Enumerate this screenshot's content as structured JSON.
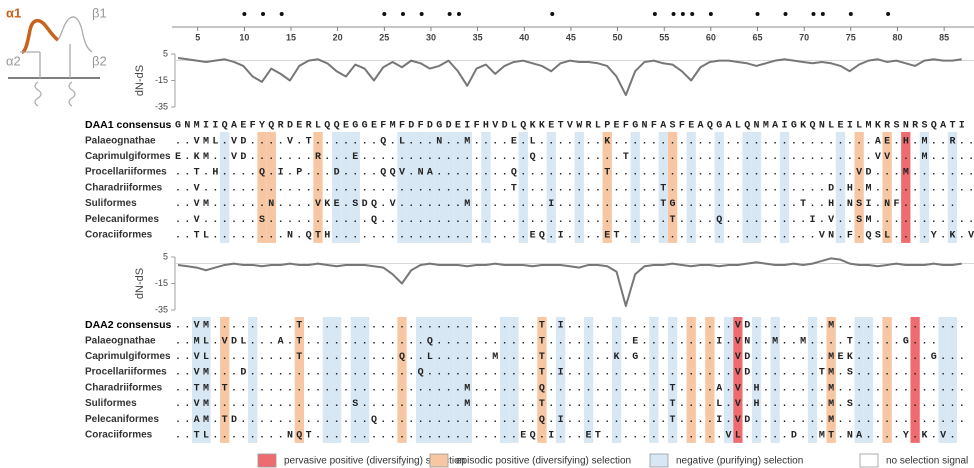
{
  "diagram_labels": [
    "α1",
    "β1",
    "α2",
    "β2"
  ],
  "ruler": {
    "ticks": [
      5,
      10,
      15,
      20,
      25,
      30,
      35,
      40,
      45,
      50,
      55,
      60,
      65,
      70,
      75,
      80,
      85
    ],
    "selected_sites": [
      10,
      12,
      14,
      25,
      27,
      29,
      32,
      33,
      43,
      54,
      56,
      57,
      58,
      60,
      65,
      68,
      71,
      72,
      75,
      79
    ]
  },
  "blocks": [
    {
      "dnds": {
        "type": "line",
        "ylabel": "dN-dS",
        "ylim": [
          -35,
          5
        ],
        "yticks": [
          5,
          -15,
          -35
        ],
        "color": "#777777",
        "values": [
          2,
          1,
          0,
          -1,
          0,
          1,
          -1,
          -4,
          -12,
          -16,
          -6,
          -10,
          -15,
          -4,
          0,
          1,
          -2,
          -8,
          -12,
          -3,
          -6,
          -15,
          -5,
          -1,
          -5,
          0,
          -2,
          -6,
          -4,
          0,
          -8,
          -19,
          -6,
          -3,
          -10,
          -4,
          -1,
          0,
          -2,
          -4,
          -8,
          -2,
          0,
          -1,
          -1,
          -2,
          -4,
          -12,
          -26,
          -8,
          -1,
          0,
          -2,
          -3,
          -8,
          -15,
          -5,
          -1,
          0,
          0,
          -1,
          -2,
          -4,
          -2,
          0,
          1,
          0,
          -1,
          -2,
          -1,
          -2,
          -4,
          -8,
          -3,
          0,
          1,
          -1,
          0,
          -2,
          -4,
          0,
          1,
          0,
          0,
          1
        ]
      },
      "consensus": {
        "name": "DAA1 consensus",
        "seq": "GNMIIQAEFYQRDERLQQEGGEFMFDFDGDEIFHVDLQKKETVWRLPEFGNFASFEAQGALQNMAIGKQNLEILMKRSNRSQATI"
      },
      "rows": [
        {
          "name": "Palaeognathae",
          "seq": "..VML.VD....V.T.......Q.L...N..M....E.L.......K............................AE.H.M..R..C.GI.."
        },
        {
          "name": "Caprimulgiformes",
          "seq": "E.KM..VD.......R...E..................Q.........T..........................VV...M.......G..."
        },
        {
          "name": "Procellariiformes",
          "seq": "..T.H....Q.I.P...D....QQV.NA........Q.........T..........................VD...M..........."
        },
        {
          "name": "Charadriiformes",
          "seq": "..V.................................T...............T.................D.H.M..............."
        },
        {
          "name": "Suliformes",
          "seq": "..VM......N....VKE.SDQ.V.......M........I...........TG.............T..H.NSI.NF......"
        },
        {
          "name": "Pelecaniformes",
          "seq": "..V......S...........Q...............................T....Q.........I.V..SM..........."
        },
        {
          "name": "Coraciiformes",
          "seq": "..TL........N.QTH.....................EQ.I....ET.....................VN.F.QSL....Y.K.V."
        }
      ],
      "negative": [
        6,
        18,
        19,
        20,
        25,
        26,
        27,
        28,
        29,
        30,
        31,
        32,
        34,
        38,
        41,
        44,
        50,
        53,
        56,
        59,
        62,
        63,
        66,
        72,
        81,
        84
      ],
      "episodic": [
        10,
        11,
        16,
        47,
        54,
        74,
        77
      ],
      "pervasive": [
        79
      ]
    },
    {
      "dnds": {
        "type": "line",
        "ylabel": "dN-dS",
        "ylim": [
          -35,
          5
        ],
        "yticks": [
          5,
          -15,
          -35
        ],
        "color": "#777777",
        "values": [
          -1,
          -2,
          -3,
          -5,
          -3,
          -1,
          0,
          -1,
          -1,
          -2,
          -1,
          -1,
          0,
          -1,
          -1,
          0,
          -1,
          -2,
          -1,
          -1,
          -1,
          -2,
          -3,
          -8,
          -15,
          -5,
          -1,
          0,
          -1,
          -1,
          -1,
          -2,
          -1,
          -1,
          0,
          -1,
          -1,
          -1,
          -2,
          -1,
          -1,
          -1,
          -2,
          -3,
          -1,
          -1,
          -2,
          -6,
          -32,
          -8,
          -2,
          -1,
          -1,
          0,
          -1,
          -2,
          -1,
          -1,
          -2,
          -1,
          -1,
          0,
          1,
          0,
          -1,
          -1,
          0,
          -1,
          0,
          2,
          4,
          3,
          0,
          -1,
          -1,
          -2,
          -1,
          0,
          -1,
          -1,
          -1,
          0,
          -1,
          -1,
          0
        ]
      },
      "consensus": {
        "name": "DAA2 consensus",
        "seq": "..VM.........T.........................T.I..................VD........M.............."
      },
      "rows": [
        {
          "name": "Palaeognathae",
          "seq": "..ML.VDL...A.T.............Q...........T.........E........I.VN..M..M....T.....G..."
        },
        {
          "name": "Caprimulgiformes",
          "seq": "..VL.........T..........Q..L......M....T.......K.G..........VD........MEK........G..."
        },
        {
          "name": "Procellariiformes",
          "seq": "..VM...D..................Q............T.I..................VD.......TM.S............"
        },
        {
          "name": "Charadriiformes",
          "seq": "..TM.T.........................M.......Q.............T....A.V.H.......M.............."
        },
        {
          "name": "Suliformes",
          "seq": "..VM...............S...........M.......T.............T....L.V.H.......M.S............"
        },
        {
          "name": "Pelecaniformes",
          "seq": "..AM.TD..............Q.................Q.I...........T....I.VD........M.............."
        },
        {
          "name": "Coraciiformes",
          "seq": "..TL........NQT......................EQ.I...ET.............VL.....D..MT.NA....Y.K.V."
        }
      ],
      "negative": [
        3,
        4,
        9,
        17,
        18,
        20,
        21,
        27,
        28,
        29,
        30,
        31,
        32,
        36,
        37,
        42,
        45,
        48,
        52,
        54,
        60,
        63,
        65,
        69,
        74,
        75,
        83,
        84
      ],
      "episodic": [
        6,
        14,
        25,
        40,
        56,
        58,
        71,
        77
      ],
      "pervasive": [
        61,
        80
      ]
    }
  ],
  "legend": [
    {
      "label": "pervasive positive (diversifying) selection",
      "color": "#ee6b70"
    },
    {
      "label": "episodic positive (diversifying) selection",
      "color": "#f6c7a2"
    },
    {
      "label": "negative (purifying) selection",
      "color": "#d8e7f4"
    },
    {
      "label": "no selection signal",
      "color": "#ffffff"
    }
  ]
}
